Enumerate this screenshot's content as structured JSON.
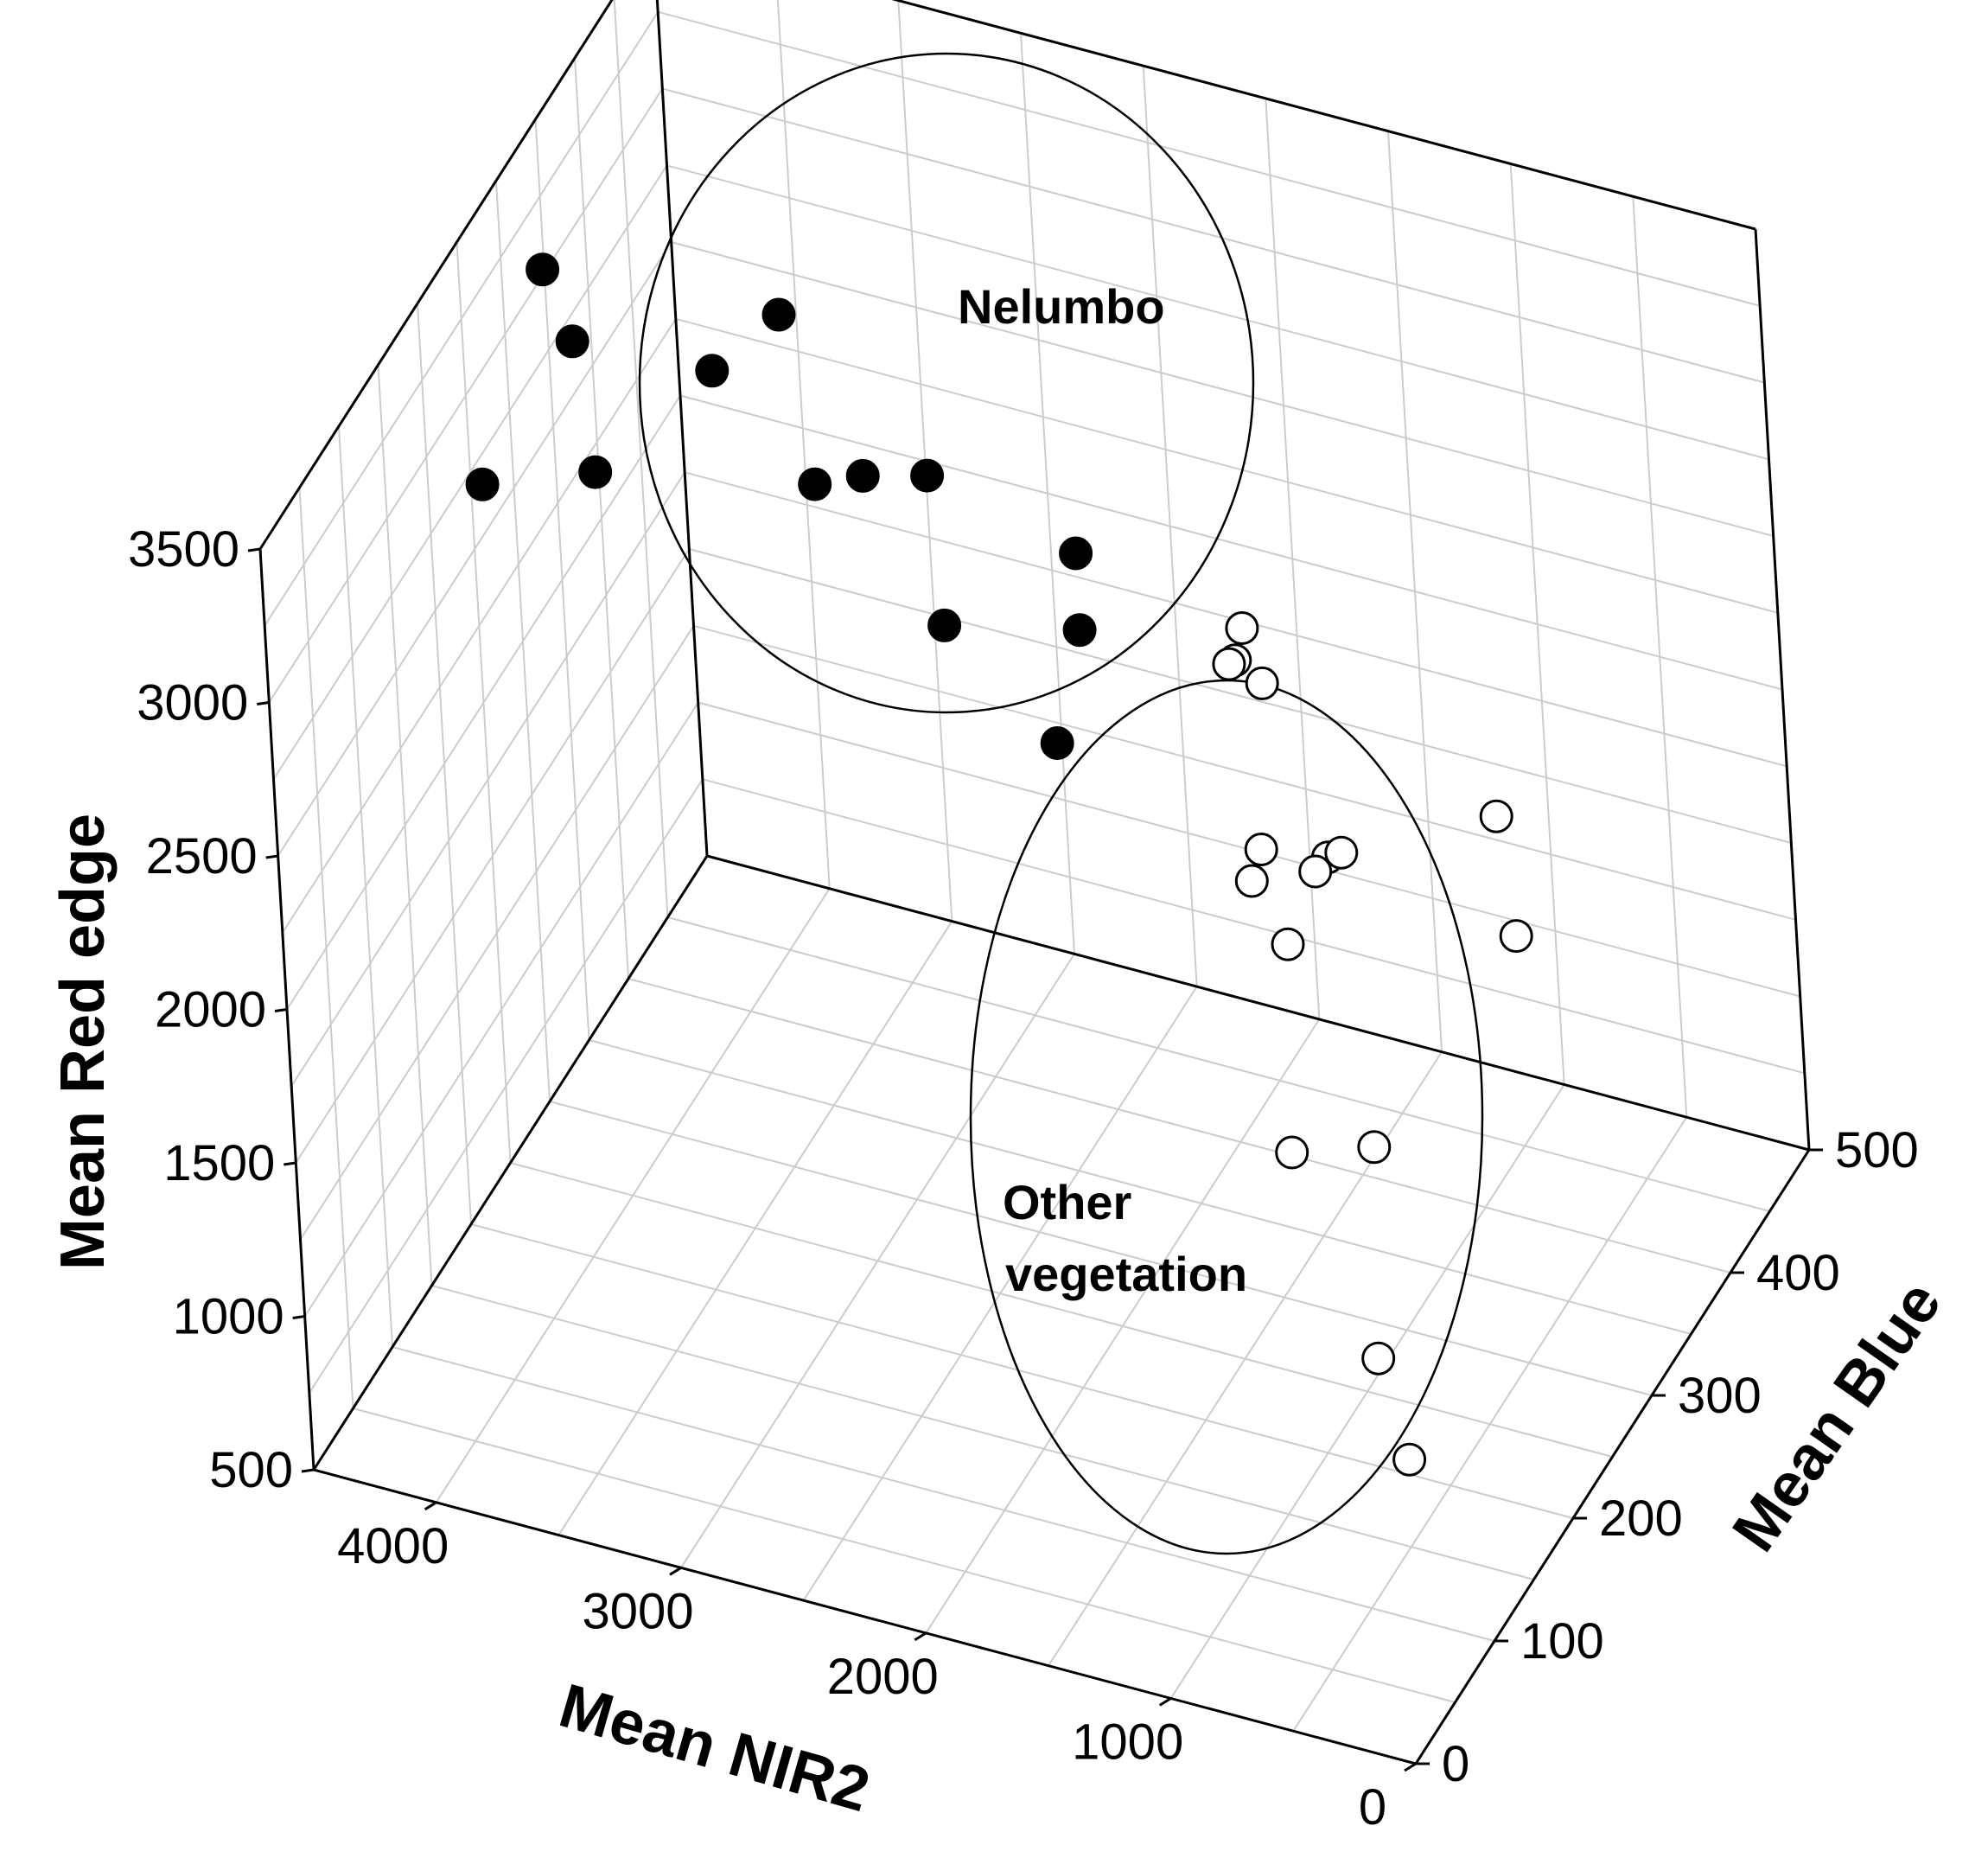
{
  "chart_data": {
    "type": "scatter",
    "projection": "3d",
    "axes": {
      "x": {
        "label": "Mean NIR2",
        "range": [
          0,
          4500
        ],
        "ticks": [
          0,
          1000,
          2000,
          3000,
          4000
        ]
      },
      "y": {
        "label": "Mean Blue",
        "range": [
          0,
          500
        ],
        "ticks": [
          0,
          100,
          200,
          300,
          400,
          500
        ]
      },
      "z": {
        "label": "Mean Red edge",
        "range": [
          500,
          3500
        ],
        "ticks": [
          500,
          1000,
          1500,
          2000,
          2500,
          3000,
          3500
        ]
      }
    },
    "grid": true,
    "legend": "none",
    "colors": {
      "nelumbo_fill": "#000000",
      "other_fill": "#ffffff",
      "marker_stroke": "#000000"
    },
    "annotations": [
      {
        "text": "Nelumbo"
      },
      {
        "text": "Other\nvegetation"
      }
    ],
    "series": [
      {
        "marker": "filled-circle",
        "points": [
          {
            "x": 4080,
            "y": 230,
            "z": 3580
          },
          {
            "x": 3200,
            "y": 255,
            "z": 3520
          },
          {
            "x": 3920,
            "y": 215,
            "z": 3440
          },
          {
            "x": 3330,
            "y": 210,
            "z": 3490
          },
          {
            "x": 3750,
            "y": 185,
            "z": 3170
          },
          {
            "x": 4150,
            "y": 165,
            "z": 3125
          },
          {
            "x": 2860,
            "y": 190,
            "z": 3300
          },
          {
            "x": 2730,
            "y": 210,
            "z": 3275
          },
          {
            "x": 2570,
            "y": 240,
            "z": 3190
          },
          {
            "x": 2250,
            "y": 160,
            "z": 3090
          },
          {
            "x": 1990,
            "y": 245,
            "z": 3040
          },
          {
            "x": 1850,
            "y": 205,
            "z": 2980
          },
          {
            "x": 1810,
            "y": 160,
            "z": 2800
          }
        ]
      },
      {
        "marker": "open-circle",
        "points": [
          {
            "x": 1480,
            "y": 280,
            "z": 2660
          },
          {
            "x": 1470,
            "y": 270,
            "z": 2690
          },
          {
            "x": 1550,
            "y": 310,
            "z": 2630
          },
          {
            "x": 1480,
            "y": 310,
            "z": 2465
          },
          {
            "x": 220,
            "y": 220,
            "z": 2660
          },
          {
            "x": 1000,
            "y": 240,
            "z": 2280
          },
          {
            "x": 1020,
            "y": 230,
            "z": 2270
          },
          {
            "x": 1250,
            "y": 220,
            "z": 2230
          },
          {
            "x": 1310,
            "y": 250,
            "z": 2200
          },
          {
            "x": 1050,
            "y": 270,
            "z": 2165
          },
          {
            "x": 1080,
            "y": 210,
            "z": 2100
          },
          {
            "x": 220,
            "y": 235,
            "z": 2210
          },
          {
            "x": 900,
            "y": 150,
            "z": 1700
          },
          {
            "x": 700,
            "y": 190,
            "z": 1600
          },
          {
            "x": 520,
            "y": 130,
            "z": 1190
          },
          {
            "x": 380,
            "y": 120,
            "z": 930
          }
        ]
      }
    ]
  }
}
